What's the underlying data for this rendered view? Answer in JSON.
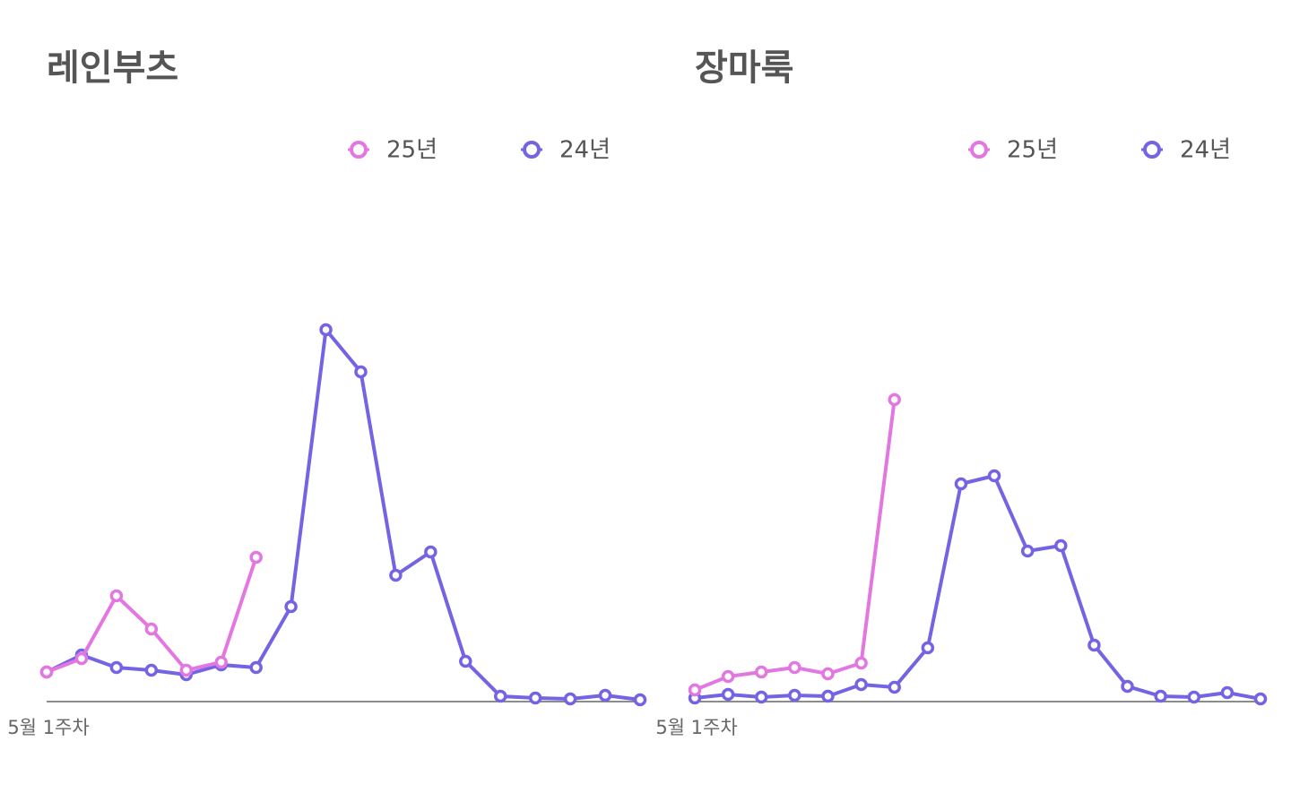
{
  "chart_data": [
    {
      "type": "line",
      "title": "레인부츠",
      "categories": [
        "5월 1주차",
        null,
        null,
        null,
        null,
        null,
        null,
        null,
        null,
        null,
        null,
        null,
        null,
        null,
        null,
        null,
        null,
        null
      ],
      "ylim": [
        0,
        100
      ],
      "series": [
        {
          "name": "25년",
          "color": "#e377e2",
          "values": [
            6.6,
            9.6,
            23.6,
            16.2,
            7,
            8.8,
            32.2,
            null,
            null,
            null,
            null,
            null,
            null,
            null,
            null,
            null,
            null,
            null
          ]
        },
        {
          "name": "24년",
          "color": "#7464e4",
          "values": [
            6.6,
            10.4,
            7.6,
            7,
            6,
            8.2,
            7.6,
            21.2,
            83,
            73.6,
            28.2,
            33.4,
            9,
            1.2,
            0.8,
            0.6,
            1.4,
            0.4
          ]
        }
      ]
    },
    {
      "type": "line",
      "title": "장마룩",
      "categories": [
        "5월 1주차",
        null,
        null,
        null,
        null,
        null,
        null,
        null,
        null,
        null,
        null,
        null,
        null,
        null,
        null,
        null,
        null,
        null
      ],
      "ylim": [
        0,
        100
      ],
      "series": [
        {
          "name": "25년",
          "color": "#e377e2",
          "values": [
            2.6,
            5.6,
            6.6,
            7.6,
            6.2,
            8.6,
            67.4,
            null,
            null,
            null,
            null,
            null,
            null,
            null,
            null,
            null,
            null,
            null
          ]
        },
        {
          "name": "24년",
          "color": "#7464e4",
          "values": [
            0.8,
            1.6,
            1,
            1.4,
            1.2,
            3.8,
            3.2,
            12,
            48.6,
            50.4,
            33.6,
            34.8,
            12.6,
            3.4,
            1.2,
            1,
            2,
            0.6
          ]
        }
      ]
    }
  ]
}
